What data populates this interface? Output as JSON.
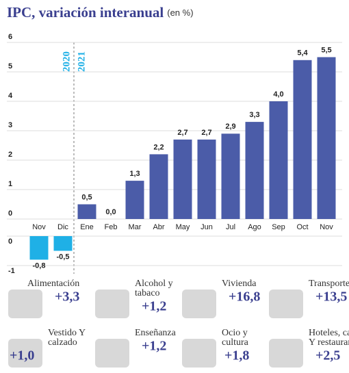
{
  "chart_data": {
    "type": "bar",
    "title": "IPC, variación interanual",
    "subtitle": "(en %)",
    "categories": [
      "Nov",
      "Dic",
      "Ene",
      "Feb",
      "Mar",
      "Abr",
      "May",
      "Jun",
      "Jul",
      "Ago",
      "Sep",
      "Oct",
      "Nov"
    ],
    "values": [
      -0.8,
      -0.5,
      0.5,
      0.0,
      1.3,
      2.2,
      2.7,
      2.7,
      2.9,
      3.3,
      4.0,
      5.4,
      5.5
    ],
    "value_labels": [
      "-0,8",
      "-0,5",
      "0,5",
      "0,0",
      "1,3",
      "2,2",
      "2,7",
      "2,7",
      "2,9",
      "3,3",
      "4,0",
      "5,4",
      "5,5"
    ],
    "color": "#4b5ca8",
    "negative_color": "#1fb0e6",
    "ylim": [
      -1,
      6
    ],
    "yticks": [
      -1,
      0,
      1,
      2,
      3,
      4,
      5,
      6
    ],
    "grid": true,
    "annotations": [
      "2020",
      "2021"
    ]
  },
  "panel": {
    "items": [
      {
        "label": "Alimentación",
        "value": "+3,3"
      },
      {
        "label": "Alcohol y tabaco",
        "value": "+1,2"
      },
      {
        "label": "Vivienda",
        "value": "+16,8"
      },
      {
        "label": "Transporte",
        "value": "+13,5"
      },
      {
        "label": "Vestido Y calzado",
        "value": "+1,0"
      },
      {
        "label": "Enseñanza",
        "value": "+1,2"
      },
      {
        "label": "Ocio y cultura",
        "value": "+1,8"
      },
      {
        "label": "Hoteles, cafés Y restaurantes",
        "value": "+2,5"
      }
    ]
  }
}
